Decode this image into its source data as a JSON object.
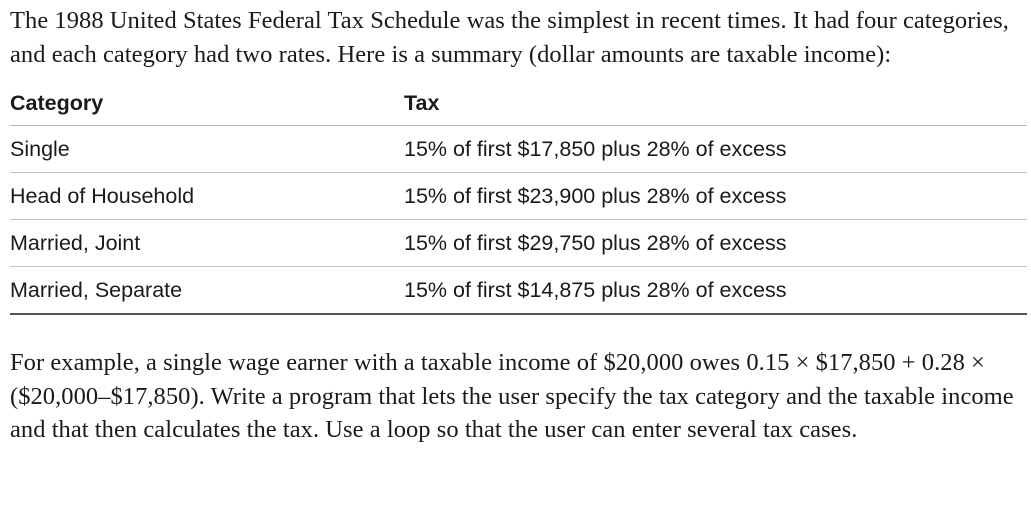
{
  "intro_text": "The 1988 United States Federal Tax Schedule was the simplest in recent times. It had four categories, and each category had two rates. Here is a summary (dollar amounts are taxable income):",
  "table": {
    "headers": {
      "category": "Category",
      "tax": "Tax"
    },
    "rows": [
      {
        "category": "Single",
        "tax": "15% of first $17,850 plus 28% of excess"
      },
      {
        "category": "Head of Household",
        "tax": "15% of first $23,900 plus 28% of excess"
      },
      {
        "category": "Married, Joint",
        "tax": "15% of first $29,750 plus 28% of excess"
      },
      {
        "category": "Married, Separate",
        "tax": "15% of first $14,875 plus 28% of excess"
      }
    ]
  },
  "example_text": "For example, a single wage earner with a taxable income of $20,000 owes 0.15 × $17,850 + 0.28 × ($20,000–$17,850). Write a program that lets the user specify the tax category and the taxable income and that then calculates the tax. Use a loop so that the user can enter several tax cases."
}
